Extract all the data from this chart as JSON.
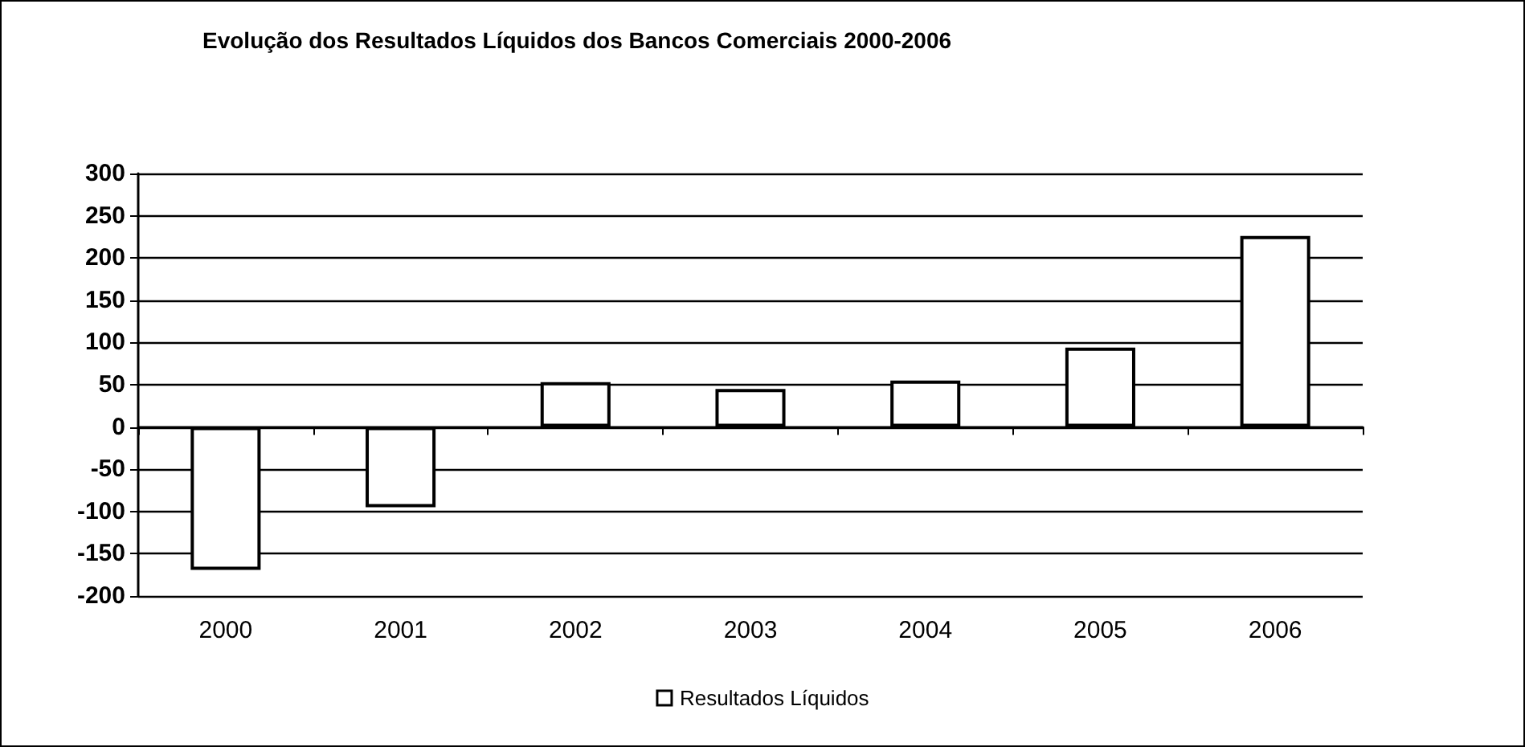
{
  "chart_data": {
    "type": "bar",
    "title": "Evolução dos Resultados Líquidos dos Bancos Comerciais 2000-2006",
    "categories": [
      "2000",
      "2001",
      "2002",
      "2003",
      "2004",
      "2005",
      "2006"
    ],
    "series": [
      {
        "name": "Resultados Líquidos",
        "color": "#ffffff",
        "values": [
          -169,
          -95,
          53,
          45,
          55,
          94,
          226
        ]
      }
    ],
    "ylim": [
      -200,
      300
    ],
    "yticks": [
      -200,
      -150,
      -100,
      -50,
      0,
      50,
      100,
      150,
      200,
      250,
      300
    ],
    "grid": "y",
    "legend": "bottom"
  }
}
